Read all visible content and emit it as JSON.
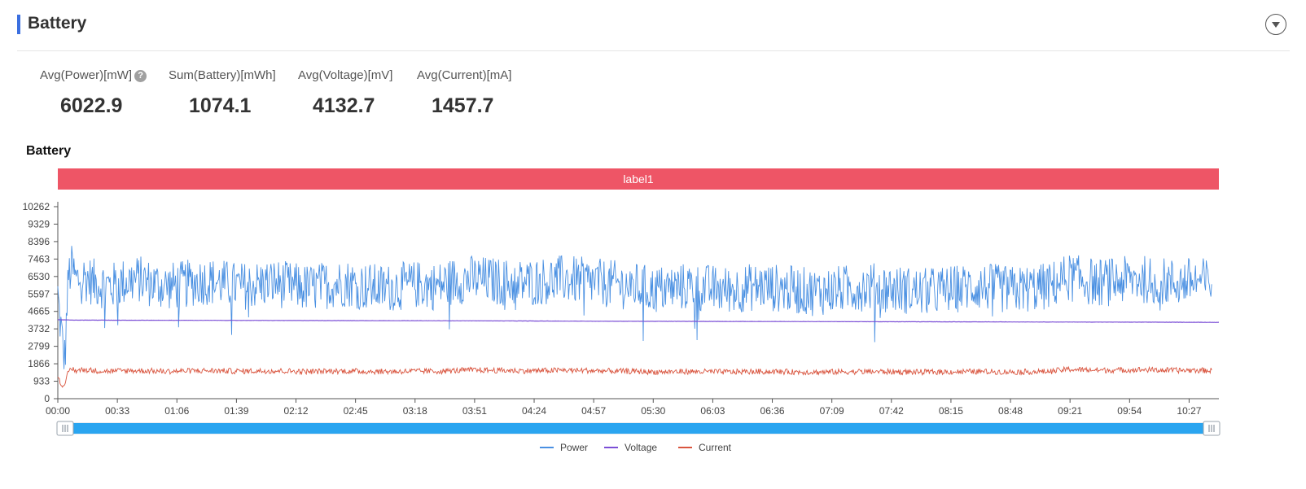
{
  "panel": {
    "title": "Battery",
    "accent_color": "#3b6fe0",
    "collapse_icon": "chevron-down-icon"
  },
  "stats": [
    {
      "label": "Avg(Power)[mW]",
      "value": "6022.9",
      "has_help": true
    },
    {
      "label": "Sum(Battery)[mWh]",
      "value": "1074.1",
      "has_help": false
    },
    {
      "label": "Avg(Voltage)[mV]",
      "value": "4132.7",
      "has_help": false
    },
    {
      "label": "Avg(Current)[mA]",
      "value": "1457.7",
      "has_help": false
    }
  ],
  "help_icon_glyph": "?",
  "chart_data": {
    "type": "line",
    "title": "Battery",
    "band_label": "label1",
    "band_color": "#ee5566",
    "y_ticks": [
      0,
      933,
      1866,
      2799,
      3732,
      4665,
      5597,
      6530,
      7463,
      8396,
      9329,
      10262
    ],
    "ylim": [
      0,
      10262
    ],
    "x_ticks": [
      "00:00",
      "00:33",
      "01:06",
      "01:39",
      "02:12",
      "02:45",
      "03:18",
      "03:51",
      "04:24",
      "04:57",
      "05:30",
      "06:03",
      "06:36",
      "07:09",
      "07:42",
      "08:15",
      "08:48",
      "09:21",
      "09:54",
      "10:27"
    ],
    "x_range_seconds": [
      0,
      38640
    ],
    "grid": false,
    "legend_position": "bottom-center",
    "series": [
      {
        "name": "Power",
        "color": "#4a90e2",
        "x_seconds": [
          0,
          60,
          120,
          180,
          240,
          300,
          360,
          480,
          600,
          900,
          1200,
          1500,
          1800,
          2100,
          2400,
          2700,
          3000,
          3600,
          4200,
          4800,
          5400,
          6000,
          6600,
          7200,
          7800,
          8400,
          9000,
          9600,
          10200,
          10800,
          11400,
          12000,
          12600,
          13200,
          13800,
          14400,
          15000,
          15600,
          16200,
          16800,
          17400,
          18000,
          18600,
          19200,
          19800,
          20400,
          21000,
          21600,
          22200,
          22800,
          23400,
          24000,
          24600,
          25200,
          25800,
          26400,
          27000,
          27600,
          28200,
          28800,
          29400,
          30000,
          30600,
          31200,
          31800,
          32400,
          33000,
          33600,
          34200,
          34800,
          35400,
          36000,
          36600,
          37200,
          37800,
          38400
        ],
        "values": [
          5600,
          4400,
          3600,
          2500,
          2100,
          4800,
          6600,
          7000,
          6300,
          6500,
          6200,
          6100,
          6000,
          6200,
          6300,
          6400,
          6200,
          6000,
          6100,
          6300,
          6200,
          6000,
          6100,
          6200,
          6000,
          5900,
          6100,
          6200,
          6000,
          5900,
          6000,
          6100,
          6000,
          6300,
          6400,
          6300,
          6200,
          6200,
          6300,
          6400,
          6300,
          6200,
          6100,
          6000,
          5800,
          5900,
          6000,
          5900,
          5800,
          5900,
          6000,
          5900,
          5800,
          5700,
          5800,
          5900,
          6000,
          5900,
          5800,
          5700,
          5800,
          5900,
          6000,
          5900,
          5800,
          5900,
          6000,
          6500,
          6300,
          6200,
          6300,
          6400,
          6300,
          6200,
          6300,
          6200
        ]
      },
      {
        "name": "Voltage",
        "color": "#7b4fd6",
        "x_seconds": [
          0,
          600,
          3600,
          7200,
          10800,
          14400,
          18000,
          21600,
          25200,
          28800,
          32400,
          36000,
          38640
        ],
        "values": [
          4220,
          4200,
          4190,
          4180,
          4170,
          4160,
          4140,
          4130,
          4120,
          4110,
          4100,
          4090,
          4080
        ]
      },
      {
        "name": "Current",
        "color": "#d9553f",
        "x_seconds": [
          0,
          60,
          120,
          180,
          240,
          300,
          360,
          480,
          600,
          900,
          1200,
          1500,
          1800,
          2400,
          3000,
          3600,
          4200,
          4800,
          5400,
          6000,
          6600,
          7200,
          7800,
          8400,
          9000,
          9600,
          10200,
          10800,
          11400,
          12000,
          12600,
          13200,
          13800,
          14400,
          15000,
          15600,
          16200,
          16800,
          17400,
          18000,
          18600,
          19200,
          19800,
          20400,
          21000,
          21600,
          22200,
          22800,
          23400,
          24000,
          24600,
          25200,
          25800,
          26400,
          27000,
          27600,
          28200,
          28800,
          29400,
          30000,
          30600,
          31200,
          31800,
          32400,
          33000,
          33600,
          34200,
          34800,
          35400,
          36000,
          36600,
          37200,
          37800,
          38400
        ],
        "values": [
          1300,
          1000,
          800,
          650,
          600,
          1100,
          1500,
          1600,
          1500,
          1550,
          1500,
          1480,
          1470,
          1500,
          1490,
          1460,
          1480,
          1500,
          1490,
          1470,
          1480,
          1490,
          1470,
          1450,
          1470,
          1480,
          1460,
          1450,
          1460,
          1470,
          1460,
          1500,
          1530,
          1520,
          1500,
          1490,
          1500,
          1520,
          1510,
          1490,
          1470,
          1460,
          1430,
          1440,
          1450,
          1440,
          1430,
          1440,
          1450,
          1440,
          1430,
          1420,
          1430,
          1440,
          1450,
          1440,
          1430,
          1420,
          1430,
          1440,
          1450,
          1440,
          1430,
          1440,
          1450,
          1570,
          1540,
          1520,
          1530,
          1550,
          1530,
          1510,
          1520,
          1500
        ]
      }
    ],
    "data_zoom_range": [
      0,
      100
    ]
  }
}
